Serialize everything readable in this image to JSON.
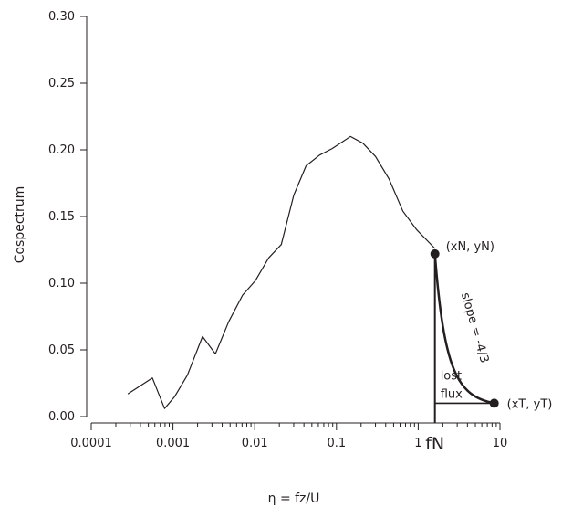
{
  "chart_data": {
    "type": "line",
    "xscale": "log",
    "xlabel": "η = fz/U",
    "ylabel": "Cospectrum",
    "xlim": [
      0.0001,
      10
    ],
    "ylim": [
      0,
      0.3
    ],
    "x_ticks": [
      {
        "value": 0.0001,
        "label": "0.0001"
      },
      {
        "value": 0.001,
        "label": "0.001"
      },
      {
        "value": 0.01,
        "label": "0.01"
      },
      {
        "value": 0.1,
        "label": "0.1"
      },
      {
        "value": 1,
        "label": "1"
      },
      {
        "value": 10,
        "label": "10"
      }
    ],
    "y_ticks": [
      {
        "value": 0,
        "label": "0.00"
      },
      {
        "value": 0.05,
        "label": "0.05"
      },
      {
        "value": 0.1,
        "label": "0.10"
      },
      {
        "value": 0.15,
        "label": "0.15"
      },
      {
        "value": 0.2,
        "label": "0.20"
      },
      {
        "value": 0.25,
        "label": "0.25"
      },
      {
        "value": 0.3,
        "label": "0.30"
      }
    ],
    "grid": false,
    "series": [
      {
        "color": "#231f20",
        "x": [
          0.00028,
          0.00056,
          0.00079,
          0.00105,
          0.0015,
          0.0023,
          0.0033,
          0.0048,
          0.0071,
          0.0102,
          0.0148,
          0.0211,
          0.03,
          0.0425,
          0.062,
          0.089,
          0.148,
          0.21,
          0.3,
          0.44,
          0.65,
          0.96,
          1.6
        ],
        "y": [
          0.017,
          0.029,
          0.006,
          0.015,
          0.031,
          0.06,
          0.047,
          0.071,
          0.091,
          0.102,
          0.119,
          0.129,
          0.166,
          0.188,
          0.196,
          0.201,
          0.21,
          0.205,
          0.195,
          0.178,
          0.154,
          0.14,
          0.126
        ]
      }
    ],
    "annotations": {
      "point_n": {
        "x": 1.6,
        "y": 0.122,
        "label": "(xN, yN)"
      },
      "point_t": {
        "x": 8.5,
        "y": 0.01,
        "label": "(xT, yT)"
      },
      "slope_label": "slope = -4/3",
      "region_label_1": "lost",
      "region_label_2": "flux",
      "fn_label": "fN"
    }
  }
}
